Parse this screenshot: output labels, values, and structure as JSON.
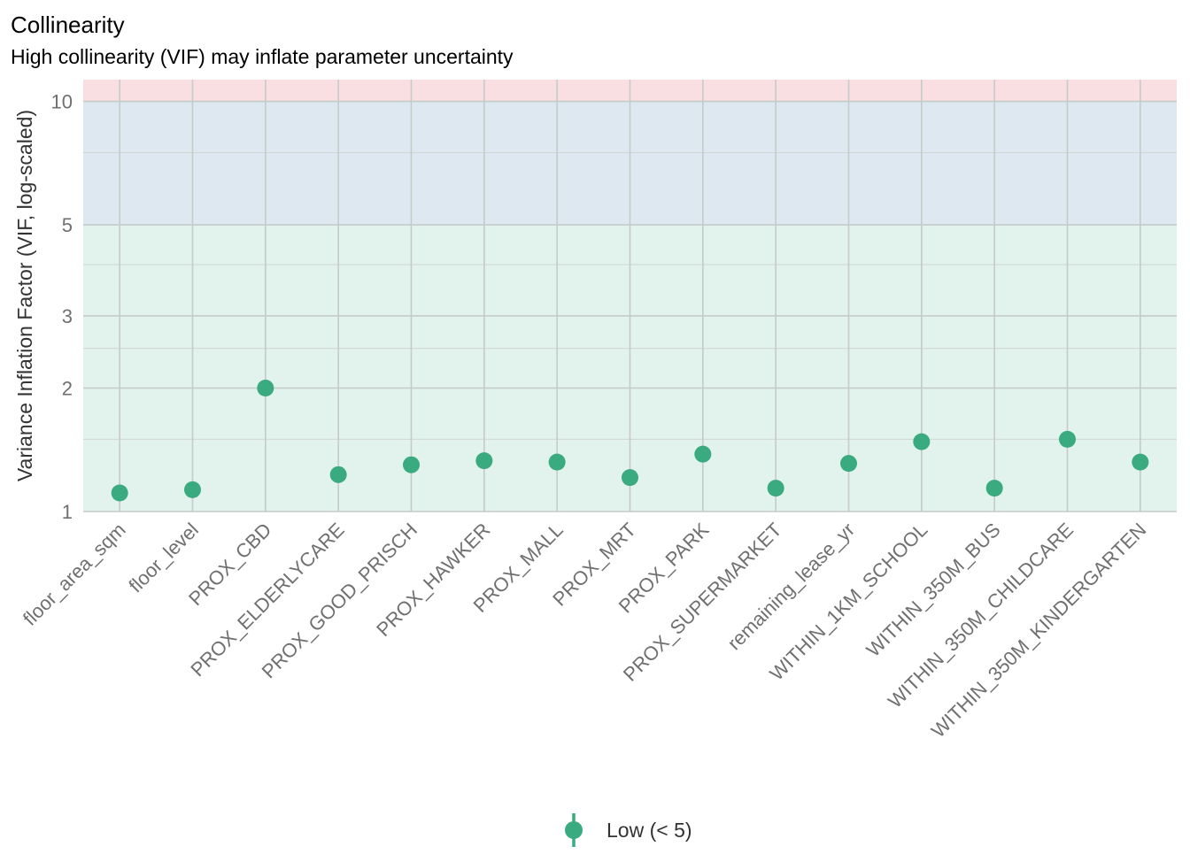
{
  "chart_data": {
    "type": "scatter",
    "title": "Collinearity",
    "subtitle": "High collinearity (VIF) may inflate parameter uncertainty",
    "ylabel": "Variance Inflation Factor (VIF, log-scaled)",
    "xlabel": "",
    "y_scale": "log",
    "ylim": [
      1,
      11.3
    ],
    "y_ticks": [
      1,
      2,
      3,
      5,
      10
    ],
    "y_tick_labels": [
      "1",
      "2",
      "3",
      "5",
      "10"
    ],
    "y_minor_ticks": [
      1.5,
      2.5,
      4,
      7.5
    ],
    "grid": true,
    "categories": [
      "floor_area_sqm",
      "floor_level",
      "PROX_CBD",
      "PROX_ELDERLYCARE",
      "PROX_GOOD_PRISCH",
      "PROX_HAWKER",
      "PROX_MALL",
      "PROX_MRT",
      "PROX_PARK",
      "PROX_SUPERMARKET",
      "remaining_lease_yr",
      "WITHIN_1KM_SCHOOL",
      "WITHIN_350M_BUS",
      "WITHIN_350M_CHILDCARE",
      "WITHIN_350M_KINDERGARTEN"
    ],
    "series": [
      {
        "name": "Low (< 5)",
        "color": "#3aaa80",
        "values": [
          1.11,
          1.13,
          2.0,
          1.23,
          1.3,
          1.33,
          1.32,
          1.21,
          1.38,
          1.14,
          1.31,
          1.48,
          1.14,
          1.5,
          1.32
        ]
      }
    ],
    "bands": [
      {
        "from": 1,
        "to": 5,
        "color": "#e2f2ec"
      },
      {
        "from": 5,
        "to": 10,
        "color": "#dde8f1"
      },
      {
        "from": 10,
        "to": 11.3,
        "color": "#f9dfe1"
      }
    ],
    "legend_position": "bottom"
  }
}
